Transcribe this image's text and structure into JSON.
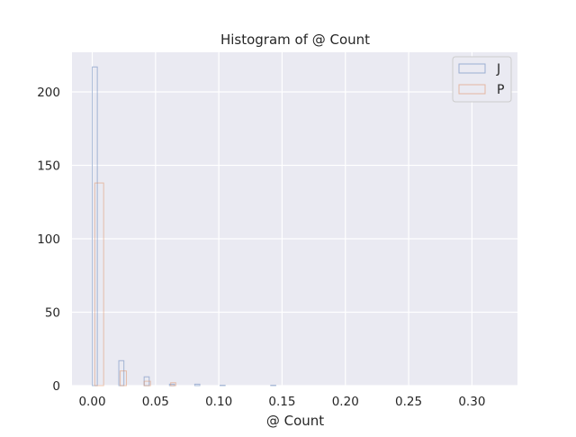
{
  "chart_data": {
    "type": "histogram",
    "title": "Histogram of @ Count",
    "xlabel": "@ Count",
    "ylabel": "",
    "xlim": [
      -0.016,
      0.336
    ],
    "ylim": [
      0,
      227
    ],
    "x_ticks": [
      0.0,
      0.05,
      0.1,
      0.15,
      0.2,
      0.25,
      0.3
    ],
    "x_tick_labels": [
      "0.00",
      "0.05",
      "0.10",
      "0.15",
      "0.20",
      "0.25",
      "0.30"
    ],
    "y_ticks": [
      0,
      50,
      100,
      150,
      200
    ],
    "y_tick_labels": [
      "0",
      "50",
      "100",
      "150",
      "200"
    ],
    "grid": true,
    "legend_position": "top-right",
    "background_color": "#eaeaf2",
    "grid_color": "#ffffff",
    "series": [
      {
        "name": "J",
        "color": "#4c72b0",
        "bins": [
          {
            "x0": 0.0,
            "x1": 0.004,
            "count": 217
          },
          {
            "x0": 0.021,
            "x1": 0.025,
            "count": 17
          },
          {
            "x0": 0.041,
            "x1": 0.045,
            "count": 6
          },
          {
            "x0": 0.061,
            "x1": 0.065,
            "count": 1
          },
          {
            "x0": 0.081,
            "x1": 0.085,
            "count": 1
          },
          {
            "x0": 0.101,
            "x1": 0.105,
            "count": 0.3
          },
          {
            "x0": 0.141,
            "x1": 0.145,
            "count": 0.3
          }
        ]
      },
      {
        "name": "P",
        "color": "#dd8452",
        "bins": [
          {
            "x0": 0.002,
            "x1": 0.009,
            "count": 138
          },
          {
            "x0": 0.022,
            "x1": 0.027,
            "count": 10
          },
          {
            "x0": 0.041,
            "x1": 0.046,
            "count": 3
          },
          {
            "x0": 0.062,
            "x1": 0.066,
            "count": 2
          }
        ]
      }
    ]
  }
}
